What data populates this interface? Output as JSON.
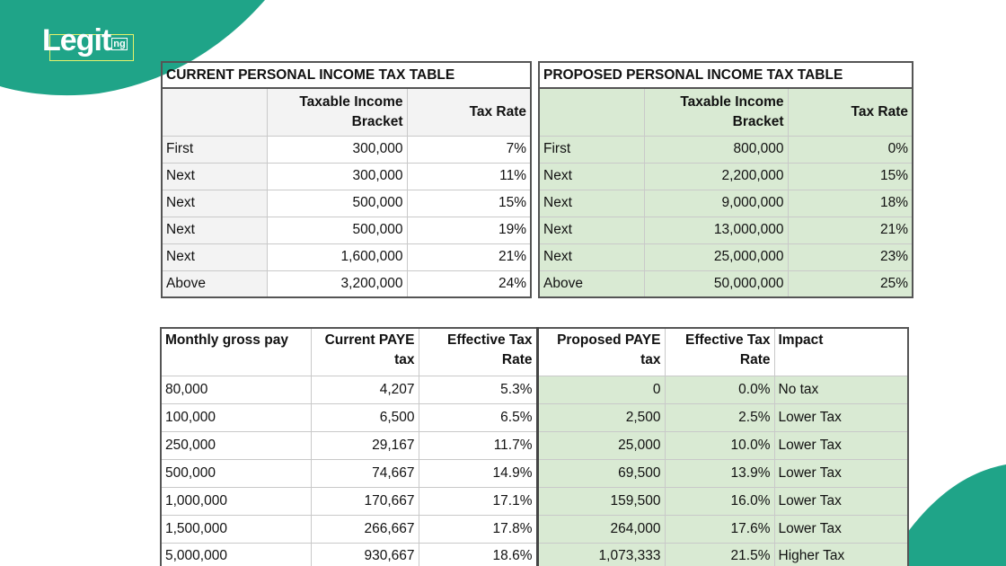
{
  "logo": {
    "name": "Legit",
    "suffix": "ng"
  },
  "current_table": {
    "title": "CURRENT PERSONAL INCOME TAX TABLE",
    "headers": [
      "Taxable Income Bracket",
      "Tax Rate"
    ],
    "rows": [
      [
        "First",
        "300,000",
        "7%"
      ],
      [
        "Next",
        "300,000",
        "11%"
      ],
      [
        "Next",
        "500,000",
        "15%"
      ],
      [
        "Next",
        "500,000",
        "19%"
      ],
      [
        "Next",
        "1,600,000",
        "21%"
      ],
      [
        "Above",
        "3,200,000",
        "24%"
      ]
    ]
  },
  "proposed_table": {
    "title": "PROPOSED PERSONAL INCOME TAX TABLE",
    "headers": [
      "Taxable Income Bracket",
      "Tax Rate"
    ],
    "rows": [
      [
        "First",
        "800,000",
        "0%"
      ],
      [
        "Next",
        "2,200,000",
        "15%"
      ],
      [
        "Next",
        "9,000,000",
        "18%"
      ],
      [
        "Next",
        "13,000,000",
        "21%"
      ],
      [
        "Next",
        "25,000,000",
        "23%"
      ],
      [
        "Above",
        "50,000,000",
        "25%"
      ]
    ]
  },
  "comparison_table": {
    "headers": [
      "Monthly gross pay",
      "Current PAYE tax",
      "Effective Tax Rate",
      "Proposed PAYE tax",
      "Effective Tax Rate",
      "Impact"
    ],
    "rows": [
      [
        "80,000",
        "4,207",
        "5.3%",
        "0",
        "0.0%",
        "No tax"
      ],
      [
        "100,000",
        "6,500",
        "6.5%",
        "2,500",
        "2.5%",
        "Lower Tax"
      ],
      [
        "250,000",
        "29,167",
        "11.7%",
        "25,000",
        "10.0%",
        "Lower Tax"
      ],
      [
        "500,000",
        "74,667",
        "14.9%",
        "69,500",
        "13.9%",
        "Lower Tax"
      ],
      [
        "1,000,000",
        "170,667",
        "17.1%",
        "159,500",
        "16.0%",
        "Lower Tax"
      ],
      [
        "1,500,000",
        "266,667",
        "17.8%",
        "264,000",
        "17.6%",
        "Lower Tax"
      ],
      [
        "5,000,000",
        "930,667",
        "18.6%",
        "1,073,333",
        "21.5%",
        "Higher Tax"
      ]
    ]
  }
}
